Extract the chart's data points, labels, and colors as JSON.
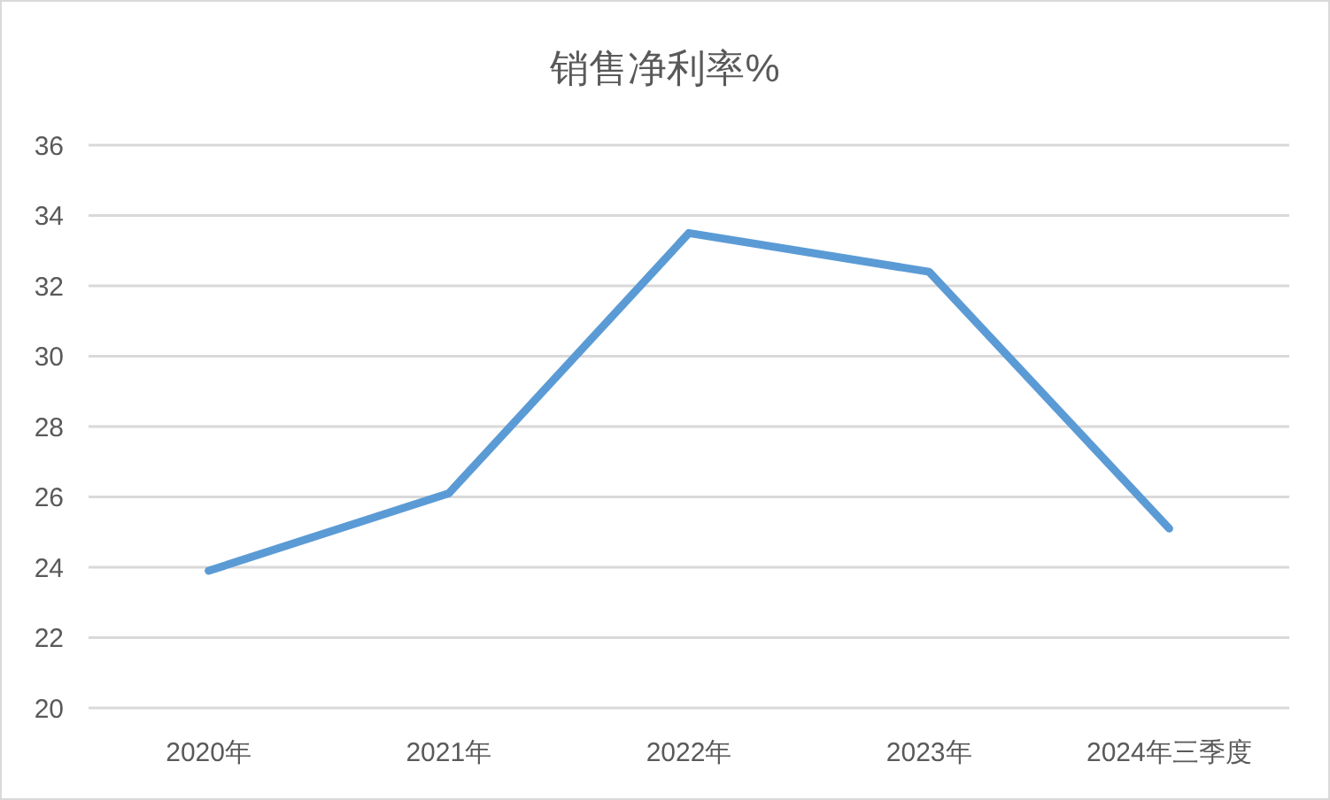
{
  "chart_data": {
    "type": "line",
    "title": "销售净利率%",
    "categories": [
      "2020年",
      "2021年",
      "2022年",
      "2023年",
      "2024年三季度"
    ],
    "series": [
      {
        "color": "#5b9bd5",
        "values": [
          23.9,
          26.1,
          33.5,
          32.4,
          25.1
        ]
      }
    ],
    "ylim": [
      20,
      36
    ],
    "yticks": [
      20,
      22,
      24,
      26,
      28,
      30,
      32,
      34,
      36
    ],
    "grid": "y"
  }
}
